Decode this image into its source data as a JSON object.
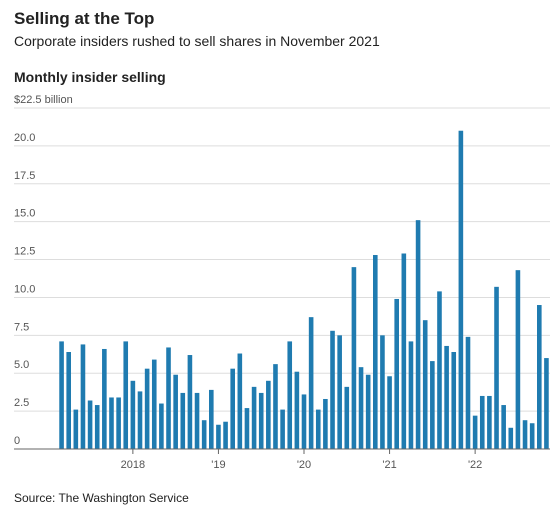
{
  "chart_data": {
    "type": "bar",
    "title": "Selling at the Top",
    "subtitle": "Corporate insiders rushed to sell shares in November 2021",
    "y_label": "Monthly insider selling",
    "source": "Source: The Washington Service",
    "color": "#1f7bb0",
    "grid": true,
    "categories": [
      null,
      null,
      null,
      null,
      null,
      null,
      null,
      null,
      null,
      null,
      "2018",
      null,
      null,
      null,
      null,
      null,
      null,
      null,
      null,
      null,
      null,
      null,
      "'19",
      null,
      null,
      null,
      null,
      null,
      null,
      null,
      null,
      null,
      null,
      null,
      "'20",
      null,
      null,
      null,
      null,
      null,
      null,
      null,
      null,
      null,
      null,
      null,
      "'21",
      null,
      null,
      null,
      null,
      null,
      null,
      null,
      null,
      null,
      null,
      null,
      "'22",
      null,
      null,
      null,
      null,
      null,
      null,
      null,
      null,
      null,
      null
    ],
    "values": [
      7.1,
      6.4,
      2.6,
      6.9,
      3.2,
      2.9,
      6.6,
      3.4,
      3.4,
      7.1,
      4.5,
      3.8,
      5.3,
      5.9,
      3.0,
      6.7,
      4.9,
      3.7,
      6.2,
      3.7,
      1.9,
      3.9,
      1.6,
      1.8,
      5.3,
      6.3,
      2.7,
      4.1,
      3.7,
      4.5,
      5.6,
      2.6,
      7.1,
      5.1,
      3.6,
      8.7,
      2.6,
      3.3,
      7.8,
      7.5,
      4.1,
      12.0,
      5.4,
      4.9,
      12.8,
      7.5,
      4.8,
      9.9,
      12.9,
      7.1,
      15.1,
      8.5,
      5.8,
      10.4,
      6.8,
      6.4,
      21.0,
      7.4,
      2.2,
      3.5,
      3.5,
      10.7,
      2.9,
      1.4,
      11.8,
      1.9,
      1.7,
      9.5,
      6.0
    ],
    "ylim": [
      0,
      22.5
    ],
    "yticks": [
      0,
      {
        "value": 2.5,
        "label": "2.5"
      },
      {
        "value": 5,
        "label": "5.0"
      },
      {
        "value": 7.5,
        "label": "7.5"
      },
      {
        "value": 10,
        "label": "10.0"
      },
      {
        "value": 12.5,
        "label": "12.5"
      },
      {
        "value": 15,
        "label": "15.0"
      },
      {
        "value": 17.5,
        "label": "17.5"
      },
      {
        "value": 20,
        "label": "20.0"
      },
      {
        "value": 22.5,
        "label": "$22.5 billion"
      }
    ]
  }
}
